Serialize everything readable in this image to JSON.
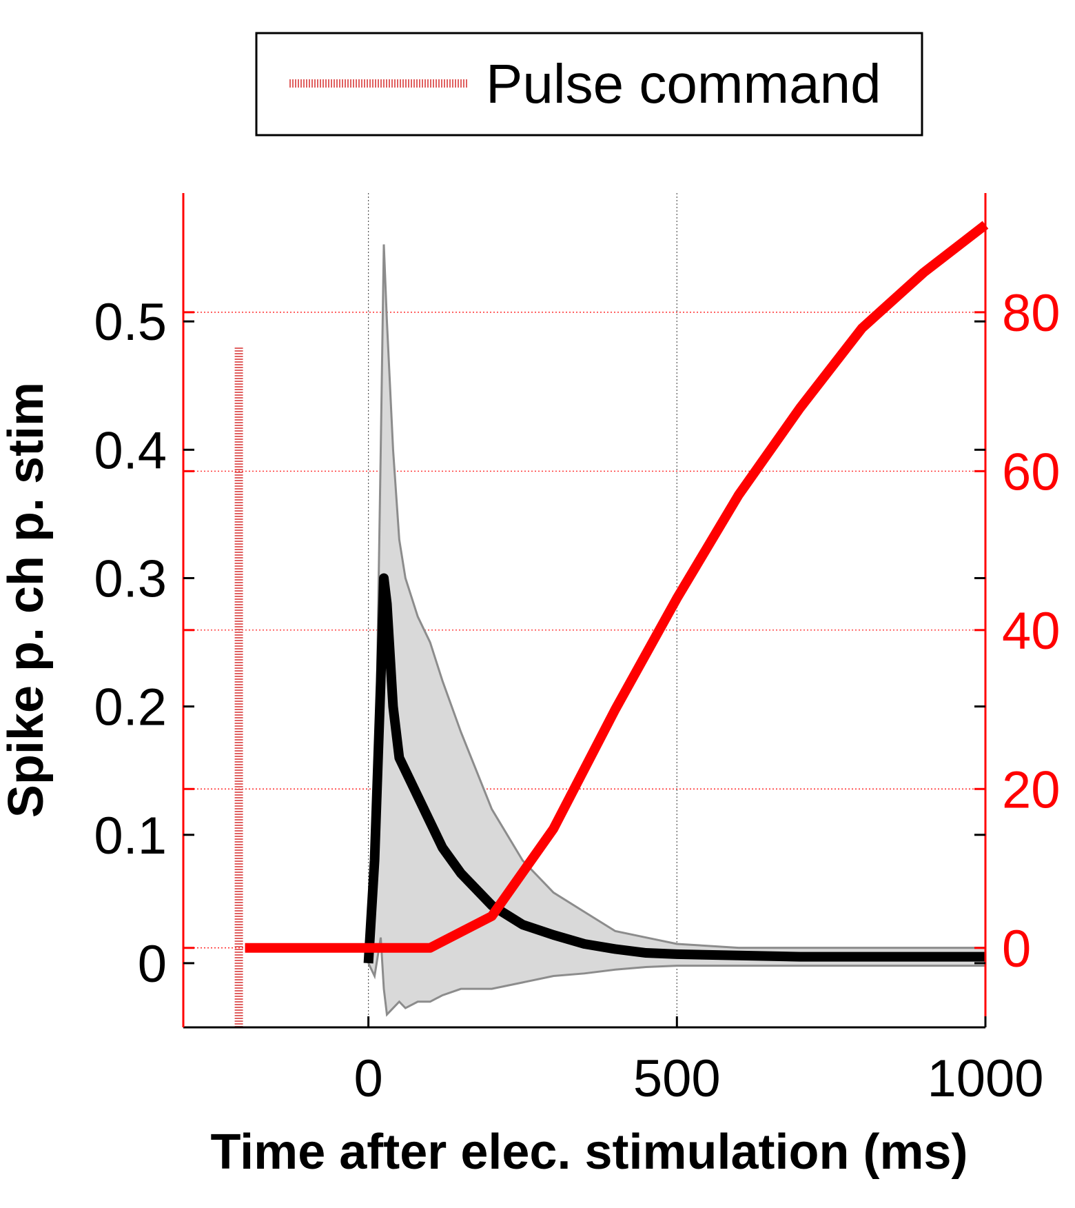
{
  "chart_data": {
    "type": "line",
    "xlabel": "Time after elec. stimulation (ms)",
    "ylabel": "Spike p. ch p. stim",
    "ylabel_right": "",
    "xlim": [
      -300,
      1000
    ],
    "ylim": [
      -0.05,
      0.6
    ],
    "ylim_right": [
      -10,
      95
    ],
    "xticks": [
      0,
      500,
      1000
    ],
    "yticks": [
      0,
      0.1,
      0.2,
      0.3,
      0.4,
      0.5
    ],
    "yticks_right": [
      0,
      20,
      40,
      60,
      80
    ],
    "grid": true,
    "legend": {
      "placement": "top",
      "entries": [
        "Pulse command"
      ]
    },
    "colors": {
      "mean": "#000000",
      "band": "#d9d9d9",
      "band_edge": "#8c8c8c",
      "right": "#ff0000",
      "pulse": "#e06060"
    },
    "pulse_command": {
      "x": -210,
      "y_range": [
        -0.05,
        0.48
      ]
    },
    "series": [
      {
        "axis": "left",
        "x": [
          0,
          10,
          20,
          25,
          30,
          40,
          50,
          60,
          80,
          100,
          120,
          150,
          200,
          250,
          300,
          350,
          400,
          450,
          500,
          600,
          700,
          800,
          900,
          1000
        ],
        "y": [
          0,
          0.08,
          0.22,
          0.3,
          0.28,
          0.2,
          0.16,
          0.15,
          0.13,
          0.11,
          0.09,
          0.07,
          0.045,
          0.03,
          0.022,
          0.015,
          0.011,
          0.008,
          0.007,
          0.006,
          0.005,
          0.005,
          0.005,
          0.005
        ]
      },
      {
        "axis": "left",
        "band": true,
        "x": [
          0,
          10,
          20,
          25,
          30,
          40,
          50,
          60,
          80,
          100,
          120,
          150,
          200,
          250,
          300,
          350,
          400,
          450,
          500,
          600,
          700,
          800,
          900,
          1000
        ],
        "upper": [
          0,
          0.1,
          0.4,
          0.56,
          0.5,
          0.4,
          0.33,
          0.3,
          0.27,
          0.25,
          0.22,
          0.18,
          0.12,
          0.08,
          0.055,
          0.04,
          0.025,
          0.02,
          0.015,
          0.012,
          0.012,
          0.012,
          0.012,
          0.012
        ],
        "lower": [
          0,
          -0.01,
          0.02,
          -0.02,
          -0.04,
          -0.035,
          -0.03,
          -0.035,
          -0.03,
          -0.03,
          -0.025,
          -0.02,
          -0.02,
          -0.015,
          -0.01,
          -0.008,
          -0.005,
          -0.003,
          -0.002,
          -0.002,
          -0.002,
          -0.002,
          -0.002,
          -0.002
        ]
      },
      {
        "axis": "right",
        "x": [
          -200,
          100,
          200,
          300,
          400,
          500,
          600,
          700,
          800,
          900,
          1000
        ],
        "y": [
          0,
          0,
          4,
          15,
          30,
          44,
          57,
          68,
          78,
          85,
          91
        ]
      }
    ]
  }
}
